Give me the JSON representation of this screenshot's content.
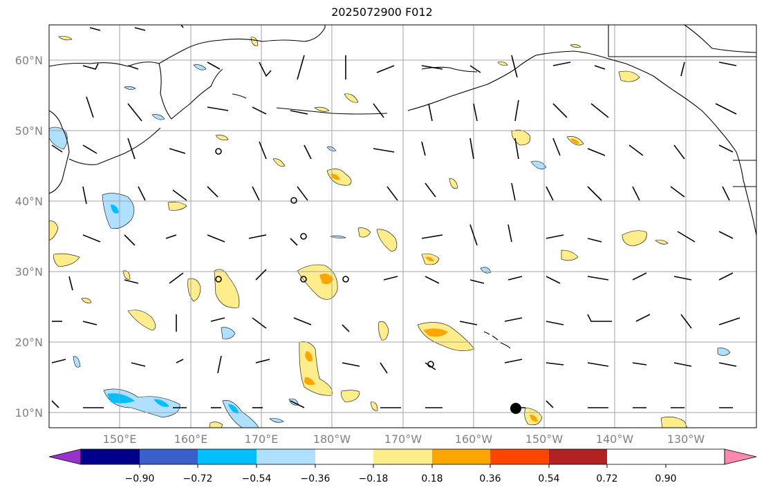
{
  "title": "2025072900 F012",
  "map": {
    "lat_labels": [
      "60°N",
      "50°N",
      "40°N",
      "30°N",
      "20°N",
      "10°N"
    ],
    "lon_labels": [
      "150°E",
      "160°E",
      "170°E",
      "180°W",
      "170°W",
      "160°W",
      "150°W",
      "140°W",
      "130°W"
    ]
  },
  "colorbar": {
    "labels": [
      "−0.90",
      "−0.72",
      "−0.54",
      "−0.36",
      "−0.18",
      "0.18",
      "0.36",
      "0.54",
      "0.72",
      "0.90"
    ],
    "colors": [
      "#9932cc",
      "#00008b",
      "#3a5fcd",
      "#00bfff",
      "#b0e0ff",
      "#ffffff",
      "#ffec8b",
      "#ffa500",
      "#ff4500",
      "#b22222",
      "#ff88b0"
    ]
  },
  "colors": {
    "positive_light": "#ffec8b",
    "positive_mid": "#ffa500",
    "negative_light": "#b0e0ff",
    "negative_mid": "#00bfff",
    "grid": "#a0a0a0",
    "coast": "#000000"
  }
}
